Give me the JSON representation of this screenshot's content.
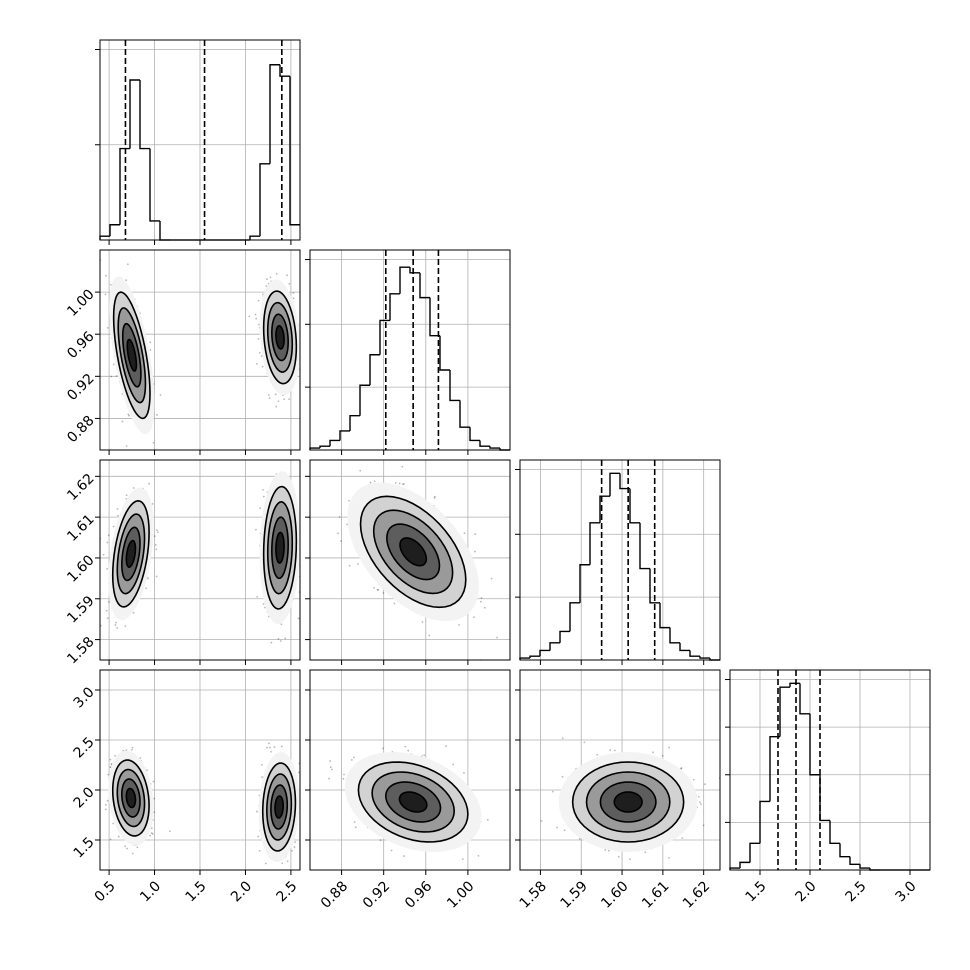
{
  "chart_data": {
    "type": "corner",
    "parameters": [
      {
        "name": "",
        "range": [
          0.4,
          2.6
        ],
        "ticks": [
          0.5,
          1.0,
          1.5,
          2.0,
          2.5
        ],
        "tick_labels": [
          "0.5",
          "1.0",
          "1.5",
          "2.0",
          "2.5"
        ],
        "quantiles": [
          0.68,
          1.55,
          2.4
        ],
        "hist_edges": [
          0.4,
          0.51,
          0.62,
          0.73,
          0.84,
          0.95,
          1.06,
          1.17,
          1.28,
          1.39,
          1.5,
          1.61,
          1.72,
          1.83,
          1.94,
          2.05,
          2.16,
          2.27,
          2.38,
          2.49,
          2.6
        ],
        "hist_counts": [
          0.02,
          0.08,
          0.48,
          0.84,
          0.48,
          0.1,
          0.0,
          0.0,
          0.0,
          0.0,
          0.0,
          0.0,
          0.0,
          0.0,
          0.0,
          0.02,
          0.4,
          0.92,
          0.86,
          0.08
        ],
        "hist_max": 1.0,
        "hist_ticks": [
          0.5,
          1.0
        ]
      },
      {
        "name": "",
        "range": [
          0.85,
          1.04
        ],
        "ticks": [
          0.88,
          0.92,
          0.96,
          1.0
        ],
        "tick_labels": [
          "0.88",
          "0.92",
          "0.96",
          "1.00"
        ],
        "quantiles": [
          0.922,
          0.948,
          0.972
        ],
        "hist_edges": [
          0.85,
          0.8595,
          0.869,
          0.8785,
          0.888,
          0.8975,
          0.907,
          0.9165,
          0.926,
          0.9355,
          0.945,
          0.9545,
          0.964,
          0.9735,
          0.983,
          0.9925,
          1.002,
          1.0115,
          1.021,
          1.0305,
          1.04
        ],
        "hist_counts": [
          0.01,
          0.02,
          0.05,
          0.1,
          0.18,
          0.34,
          0.5,
          0.68,
          0.82,
          0.96,
          0.93,
          0.8,
          0.6,
          0.42,
          0.26,
          0.12,
          0.05,
          0.02,
          0.01,
          0.0
        ],
        "hist_max": 1.0,
        "hist_ticks": [
          0.33,
          0.66,
          1.0
        ]
      },
      {
        "name": "",
        "range": [
          1.575,
          1.624
        ],
        "ticks": [
          1.58,
          1.59,
          1.6,
          1.61,
          1.62
        ],
        "tick_labels": [
          "1.58",
          "1.59",
          "1.60",
          "1.61",
          "1.62"
        ],
        "quantiles": [
          1.595,
          1.6015,
          1.608
        ],
        "hist_edges": [
          1.575,
          1.57745,
          1.5799,
          1.58235,
          1.5848,
          1.58725,
          1.5897,
          1.59215,
          1.5946,
          1.59705,
          1.5995,
          1.60195,
          1.6044,
          1.60685,
          1.6093,
          1.61175,
          1.6142,
          1.61665,
          1.6191,
          1.62155,
          1.624
        ],
        "hist_counts": [
          0.01,
          0.02,
          0.05,
          0.09,
          0.15,
          0.3,
          0.5,
          0.72,
          0.86,
          0.98,
          0.9,
          0.72,
          0.48,
          0.3,
          0.17,
          0.09,
          0.05,
          0.02,
          0.01,
          0.0
        ],
        "hist_max": 1.0,
        "hist_ticks": [
          0.33,
          0.66,
          1.0
        ]
      },
      {
        "name": "",
        "range": [
          1.2,
          3.2
        ],
        "ticks": [
          1.5,
          2.0,
          2.5,
          3.0
        ],
        "tick_labels": [
          "1.5",
          "2.0",
          "2.5",
          "3.0"
        ],
        "quantiles": [
          1.68,
          1.86,
          2.1
        ],
        "hist_edges": [
          1.2,
          1.3,
          1.4,
          1.5,
          1.6,
          1.7,
          1.8,
          1.9,
          2.0,
          2.1,
          2.2,
          2.3,
          2.4,
          2.5,
          2.6,
          2.7,
          2.8,
          2.9,
          3.0,
          3.1,
          3.2
        ],
        "hist_counts": [
          0.01,
          0.04,
          0.14,
          0.36,
          0.7,
          0.96,
          0.98,
          0.82,
          0.5,
          0.26,
          0.14,
          0.07,
          0.03,
          0.01,
          0.0,
          0.0,
          0.0,
          0.0,
          0.0,
          0.0
        ],
        "hist_max": 1.0,
        "hist_ticks": [
          0.25,
          0.5,
          0.75,
          1.0
        ]
      }
    ],
    "pairs": [
      {
        "row": 1,
        "col": 0,
        "modes": [
          {
            "x": 0.75,
            "y": 0.94,
            "sx": 0.1,
            "sy": 0.03,
            "rho": -0.6
          },
          {
            "x": 2.38,
            "y": 0.957,
            "sx": 0.09,
            "sy": 0.022,
            "rho": -0.2
          }
        ]
      },
      {
        "row": 2,
        "col": 0,
        "modes": [
          {
            "x": 0.74,
            "y": 1.601,
            "sx": 0.1,
            "sy": 0.0065,
            "rho": 0.4
          },
          {
            "x": 2.38,
            "y": 1.6025,
            "sx": 0.09,
            "sy": 0.0075,
            "rho": 0.1
          }
        ]
      },
      {
        "row": 2,
        "col": 1,
        "modes": [
          {
            "x": 0.948,
            "y": 1.6015,
            "sx": 0.025,
            "sy": 0.0068,
            "rho": -0.5
          }
        ]
      },
      {
        "row": 3,
        "col": 0,
        "modes": [
          {
            "x": 0.74,
            "y": 1.92,
            "sx": 0.1,
            "sy": 0.19,
            "rho": -0.2
          },
          {
            "x": 2.37,
            "y": 1.83,
            "sx": 0.09,
            "sy": 0.22,
            "rho": 0.1
          }
        ]
      },
      {
        "row": 3,
        "col": 1,
        "modes": [
          {
            "x": 0.948,
            "y": 1.88,
            "sx": 0.026,
            "sy": 0.2,
            "rho": -0.3
          }
        ]
      },
      {
        "row": 3,
        "col": 2,
        "modes": [
          {
            "x": 1.6015,
            "y": 1.88,
            "sx": 0.0068,
            "sy": 0.2,
            "rho": 0.0
          }
        ]
      }
    ]
  }
}
